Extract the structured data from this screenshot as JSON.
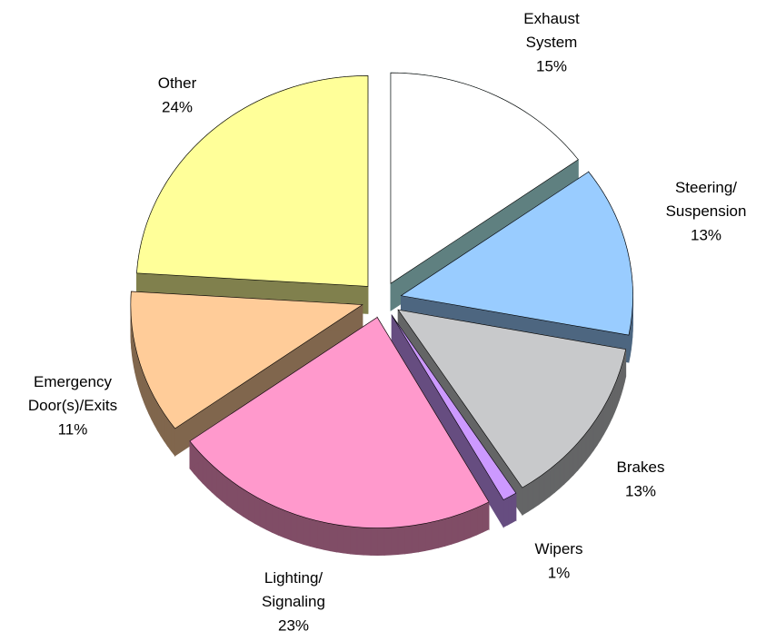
{
  "chart_data": {
    "type": "pie",
    "categories": [
      "Exhaust\nSystem",
      "Steering/\nSuspension",
      "Brakes",
      "Wipers",
      "Lighting/\nSignaling",
      "Emergency\nDoor(s)/Exits",
      "Other"
    ],
    "values": [
      15,
      13,
      13,
      1,
      23,
      11,
      24
    ],
    "value_labels": [
      "15%",
      "13%",
      "13%",
      "1%",
      "23%",
      "11%",
      "24%"
    ],
    "colors": [
      "#ffffff",
      "#99ccff",
      "#c8c9cb",
      "#cc99ff",
      "#ff99cc",
      "#ffcc99",
      "#ffff99"
    ]
  }
}
